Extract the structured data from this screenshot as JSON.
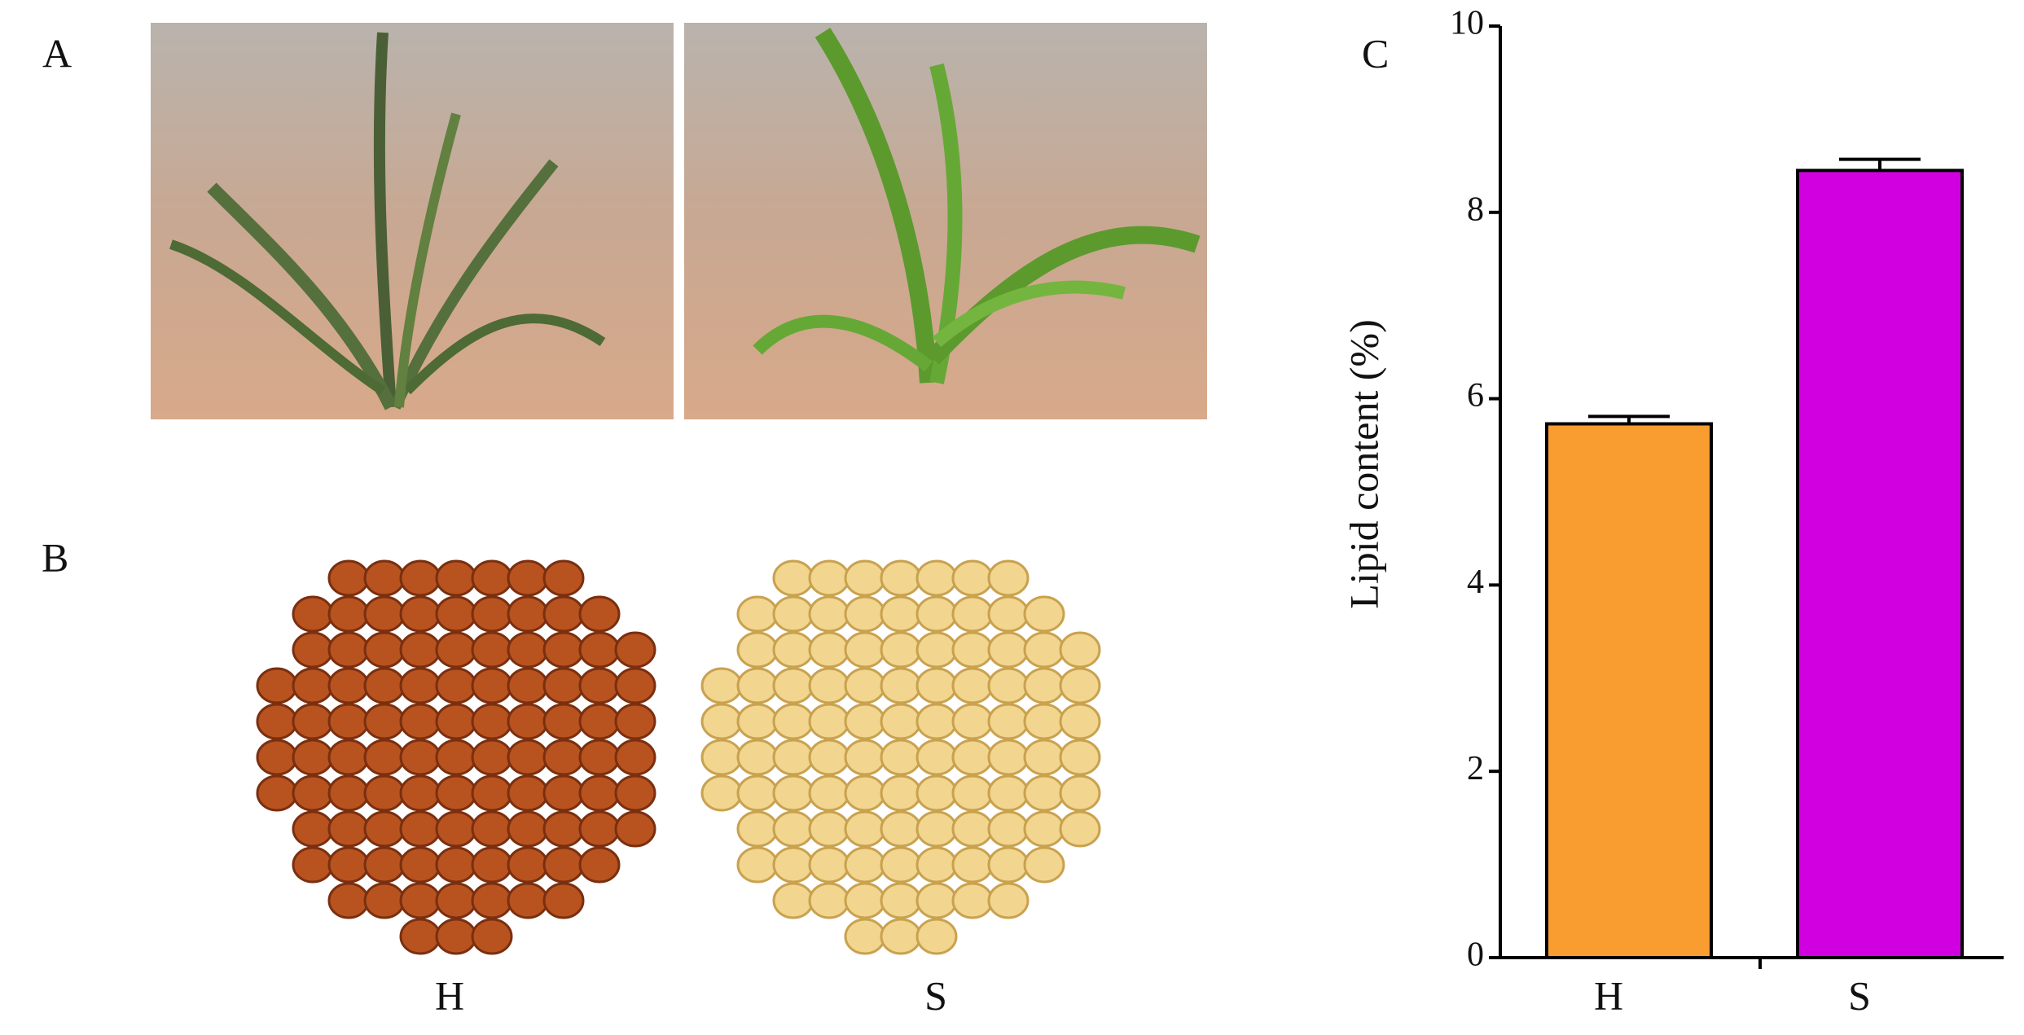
{
  "panel_labels": [
    "A",
    "B",
    "C"
  ],
  "photo_labels": [
    "H",
    "S"
  ],
  "chart_data": {
    "type": "bar",
    "ylabel": "Lipid content (%)",
    "categories": [
      "H",
      "S"
    ],
    "values": [
      5.73,
      8.45
    ],
    "errors": [
      0.08,
      0.12
    ],
    "colors": [
      "#f99d31",
      "#d100e0"
    ],
    "ylim": [
      0,
      10
    ],
    "yticks": [
      0,
      2,
      4,
      6,
      8,
      10
    ]
  }
}
